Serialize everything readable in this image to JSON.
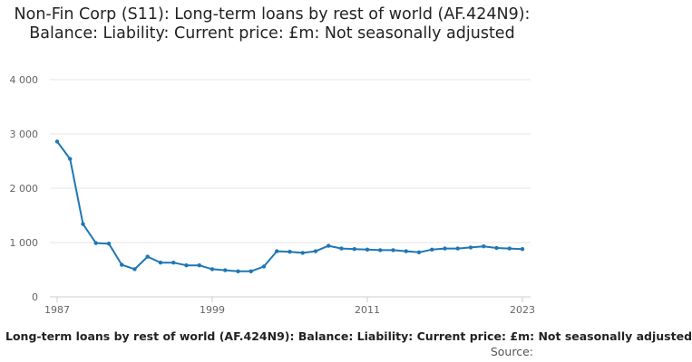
{
  "chart_data": {
    "type": "line",
    "title": "Non-Fin Corp (S11): Long-term loans by rest of world (AF.424N9): Balance: Liability: Current price: £m: Not seasonally adjusted",
    "xlabel": "",
    "ylabel": "",
    "x": [
      1987,
      1988,
      1989,
      1990,
      1991,
      1992,
      1993,
      1994,
      1995,
      1996,
      1997,
      1998,
      1999,
      2000,
      2001,
      2002,
      2003,
      2004,
      2005,
      2006,
      2007,
      2008,
      2009,
      2010,
      2011,
      2012,
      2013,
      2014,
      2015,
      2016,
      2017,
      2018,
      2019,
      2020,
      2021,
      2022,
      2023
    ],
    "series": [
      {
        "name": "",
        "values": [
          2860,
          2540,
          1340,
          990,
          980,
          590,
          510,
          740,
          630,
          630,
          580,
          580,
          510,
          490,
          470,
          470,
          560,
          840,
          830,
          810,
          840,
          940,
          890,
          880,
          870,
          860,
          860,
          840,
          820,
          870,
          890,
          890,
          910,
          930,
          900,
          890,
          880
        ]
      }
    ],
    "ylim": [
      0,
      4000
    ],
    "yticks": [
      0,
      1000,
      2000,
      3000,
      4000
    ],
    "ytick_labels": [
      "0",
      "1 000",
      "2 000",
      "3 000",
      "4 000"
    ],
    "xticks": [
      1987,
      1999,
      2011,
      2023
    ],
    "xtick_labels": [
      "1987",
      "1999",
      "2011",
      "2023"
    ],
    "grid": true,
    "line_color": "#1f77b4"
  },
  "footer": {
    "series_label": "Long-term loans by rest of world (AF.424N9): Balance: Liability: Current price: £m: Not seasonally adjusted",
    "source_label": "Source:"
  }
}
